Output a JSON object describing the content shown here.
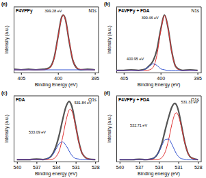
{
  "chart_data": [
    {
      "type": "line",
      "panel_label": "(a)",
      "title": "P4VPPy",
      "subtitle": "N1s",
      "xlabel": "Binding Energy (eV)",
      "ylabel": "Intensity (a.u.)",
      "xlim": [
        406,
        394.5
      ],
      "xticks": [
        405,
        400,
        395
      ],
      "ylim": [
        0,
        1.2
      ],
      "tick_labels": "x",
      "series": [
        {
          "color": "#555555",
          "x": [
            406,
            405,
            404,
            403,
            402,
            401.5,
            401,
            400.5,
            400,
            399.5,
            399.28,
            399,
            398.5,
            398,
            397.5,
            397,
            396,
            395
          ],
          "values": [
            0.06,
            0.05,
            0.06,
            0.05,
            0.06,
            0.07,
            0.11,
            0.28,
            0.65,
            1.01,
            1.05,
            0.98,
            0.58,
            0.23,
            0.09,
            0.05,
            0.06,
            0.05
          ]
        },
        {
          "color": "#e03030",
          "x": [
            406,
            405,
            404,
            403,
            402,
            401.5,
            401,
            400.5,
            400,
            399.5,
            399.28,
            399,
            398.5,
            398,
            397.5,
            397,
            396,
            395
          ],
          "values": [
            0.05,
            0.05,
            0.05,
            0.05,
            0.05,
            0.06,
            0.1,
            0.27,
            0.64,
            1.0,
            1.05,
            0.97,
            0.59,
            0.24,
            0.09,
            0.06,
            0.05,
            0.05
          ]
        },
        {
          "color": "#3050d0",
          "x": [
            406,
            395
          ],
          "values": [
            0.05,
            0.05
          ]
        }
      ],
      "annotations": [
        {
          "text": "399.28 eV",
          "x": 401.8,
          "y": 1.1
        }
      ]
    },
    {
      "type": "line",
      "panel_label": "(b)",
      "title": "P4VPPy + FDA",
      "subtitle": "N1s",
      "xlabel": "Binding Energy (eV)",
      "ylabel": "Intensity (a.u.)",
      "xlim": [
        406,
        394.5
      ],
      "xticks": [
        405,
        400,
        395
      ],
      "ylim": [
        0,
        1.2
      ],
      "tick_labels": "x",
      "series": [
        {
          "color": "#555555",
          "x": [
            406,
            405,
            404,
            403,
            402.5,
            402,
            401.5,
            401,
            400.5,
            400,
            399.46,
            399,
            398.5,
            398,
            397.5,
            397,
            396,
            395
          ],
          "values": [
            0.04,
            0.04,
            0.05,
            0.04,
            0.05,
            0.07,
            0.13,
            0.22,
            0.42,
            0.78,
            1.05,
            0.82,
            0.39,
            0.12,
            0.06,
            0.04,
            0.05,
            0.04
          ]
        },
        {
          "color": "#e03030",
          "x": [
            406,
            405,
            404,
            403,
            402.5,
            402,
            401.5,
            401,
            400.5,
            400,
            399.46,
            399,
            398.5,
            398,
            397.5,
            397,
            396,
            395
          ],
          "values": [
            0.04,
            0.04,
            0.04,
            0.04,
            0.04,
            0.04,
            0.05,
            0.1,
            0.32,
            0.75,
            1.04,
            0.82,
            0.38,
            0.12,
            0.05,
            0.04,
            0.04,
            0.04
          ]
        },
        {
          "color": "#3050d0",
          "x": [
            406,
            405,
            404,
            403,
            402.5,
            402,
            401.5,
            401,
            400.5,
            400,
            399.46,
            399,
            398.5,
            398,
            397.5,
            397,
            396,
            395
          ],
          "values": [
            0.04,
            0.04,
            0.04,
            0.04,
            0.04,
            0.07,
            0.12,
            0.16,
            0.13,
            0.07,
            0.05,
            0.04,
            0.04,
            0.04,
            0.04,
            0.04,
            0.04,
            0.04
          ]
        }
      ],
      "annotations": [
        {
          "text": "399.46 eV",
          "x": 402.6,
          "y": 0.98
        },
        {
          "text": "400.95 eV",
          "x": 404.6,
          "y": 0.22
        }
      ]
    },
    {
      "type": "line",
      "panel_label": "(c)",
      "title": "FDA",
      "subtitle": "O1s",
      "xlabel": "Binding energy (eV)",
      "ylabel": "Intensity (a.u.)",
      "xlim": [
        540.5,
        527.5
      ],
      "xticks": [
        540,
        537,
        534,
        531,
        528
      ],
      "ylim": [
        0,
        1.3
      ],
      "tick_labels": "x",
      "series": [
        {
          "color": "#555555",
          "x": [
            540,
            538,
            537,
            536,
            535,
            534.5,
            534,
            533.5,
            533,
            532.5,
            532,
            531.84,
            531.5,
            531,
            530.5,
            530,
            529,
            528
          ],
          "values": [
            0.04,
            0.04,
            0.05,
            0.04,
            0.08,
            0.16,
            0.31,
            0.54,
            0.83,
            1.08,
            1.19,
            1.17,
            1.05,
            0.71,
            0.38,
            0.16,
            0.05,
            0.04
          ]
        },
        {
          "color": "#e03030",
          "x": [
            540,
            538,
            537,
            536,
            535,
            534.5,
            534,
            533.5,
            533,
            532.5,
            532,
            531.84,
            531.5,
            531,
            530.5,
            530,
            529,
            528
          ],
          "values": [
            0.04,
            0.04,
            0.04,
            0.04,
            0.04,
            0.05,
            0.1,
            0.22,
            0.48,
            0.8,
            1.02,
            1.04,
            0.97,
            0.69,
            0.37,
            0.16,
            0.05,
            0.04
          ]
        },
        {
          "color": "#3050d0",
          "x": [
            540,
            538,
            537,
            536,
            535,
            534.5,
            534,
            533.5,
            533,
            532.5,
            532,
            531.84,
            531.5,
            531,
            530.5,
            530,
            529,
            528
          ],
          "values": [
            0.04,
            0.04,
            0.04,
            0.04,
            0.08,
            0.14,
            0.25,
            0.36,
            0.39,
            0.32,
            0.21,
            0.17,
            0.11,
            0.06,
            0.05,
            0.04,
            0.04,
            0.04
          ]
        }
      ],
      "annotations": [
        {
          "text": "531.84 eV",
          "x": 531.2,
          "y": 1.14
        },
        {
          "text": "533.09 eV",
          "x": 538.2,
          "y": 0.55
        }
      ]
    },
    {
      "type": "line",
      "panel_label": "(d)",
      "title": "P4VPPy + FDA",
      "subtitle": "O1s",
      "xlabel": "Binding energy (eV)",
      "ylabel": "Intensity (a.u.)",
      "xlim": [
        540.5,
        527.5
      ],
      "xticks": [
        540,
        537,
        534,
        531,
        528
      ],
      "ylim": [
        0,
        1.4
      ],
      "tick_labels": "x",
      "series": [
        {
          "color": "#555555",
          "x": [
            540,
            538,
            537,
            536,
            535,
            534,
            533.5,
            533,
            532.5,
            532,
            531.5,
            531.31,
            531,
            530.5,
            530,
            529.5,
            529,
            528
          ],
          "values": [
            0.04,
            0.04,
            0.05,
            0.04,
            0.06,
            0.21,
            0.4,
            0.68,
            0.94,
            1.16,
            1.24,
            1.21,
            1.09,
            0.75,
            0.4,
            0.17,
            0.08,
            0.04
          ]
        },
        {
          "color": "#e03030",
          "x": [
            540,
            538,
            537,
            536,
            535,
            534,
            533.5,
            533,
            532.5,
            532,
            531.5,
            531.31,
            531,
            530.5,
            530,
            529.5,
            529,
            528
          ],
          "values": [
            0.04,
            0.04,
            0.04,
            0.04,
            0.04,
            0.05,
            0.09,
            0.21,
            0.46,
            0.79,
            1.02,
            1.04,
            0.98,
            0.71,
            0.39,
            0.17,
            0.08,
            0.04
          ]
        },
        {
          "color": "#3050d0",
          "x": [
            540,
            538,
            537,
            536,
            535,
            534,
            533.5,
            533,
            532.5,
            532,
            531.5,
            531.31,
            531,
            530.5,
            530,
            529.5,
            529,
            528
          ],
          "values": [
            0.04,
            0.04,
            0.04,
            0.04,
            0.06,
            0.2,
            0.35,
            0.47,
            0.48,
            0.37,
            0.22,
            0.17,
            0.11,
            0.06,
            0.05,
            0.04,
            0.04,
            0.04
          ]
        }
      ],
      "annotations": [
        {
          "text": "531.31 eV",
          "x": 530.6,
          "y": 1.24
        },
        {
          "text": "532.71 eV",
          "x": 538.4,
          "y": 0.74
        }
      ]
    }
  ]
}
